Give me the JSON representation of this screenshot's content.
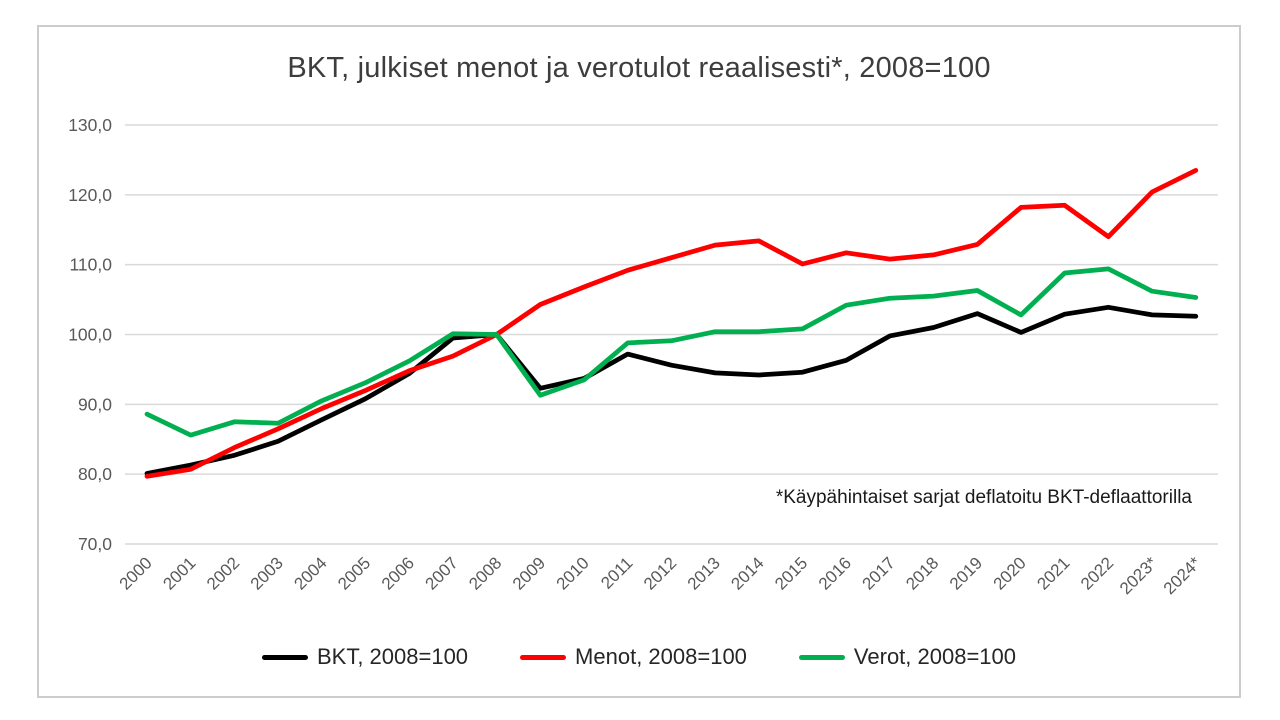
{
  "title": "BKT, julkiset menot ja verotulot reaalisesti*, 2008=100",
  "annotation": "*Käypähintaiset sarjat deflatoitu BKT-deflaattorilla",
  "colors": {
    "background": "#ffffff",
    "frame_border": "#cccccc",
    "gridline": "#d9d9d9",
    "axis_text": "#595959",
    "title_text": "#3d3d3d",
    "legend_text": "#262626",
    "series_bkt": "#000000",
    "series_menot": "#ff0000",
    "series_verot": "#00b050"
  },
  "chart_data": {
    "type": "line",
    "title": "BKT, julkiset menot ja verotulot reaalisesti*, 2008=100",
    "categories": [
      "2000",
      "2001",
      "2002",
      "2003",
      "2004",
      "2005",
      "2006",
      "2007",
      "2008",
      "2009",
      "2010",
      "2011",
      "2012",
      "2013",
      "2014",
      "2015",
      "2016",
      "2017",
      "2018",
      "2019",
      "2020",
      "2021",
      "2022",
      "2023*",
      "2024*"
    ],
    "series": [
      {
        "name": "BKT, 2008=100",
        "color": "#000000",
        "values": [
          80.1,
          81.3,
          82.7,
          84.7,
          87.8,
          90.8,
          94.4,
          99.5,
          100.0,
          92.3,
          93.7,
          97.2,
          95.6,
          94.5,
          94.2,
          94.6,
          96.3,
          99.8,
          101.0,
          103.0,
          100.3,
          102.9,
          103.9,
          102.8,
          102.6
        ]
      },
      {
        "name": "Menot, 2008=100",
        "color": "#ff0000",
        "values": [
          79.7,
          80.7,
          83.8,
          86.5,
          89.4,
          92.0,
          94.8,
          96.9,
          100.0,
          104.3,
          106.8,
          109.2,
          111.0,
          112.8,
          113.4,
          110.1,
          111.7,
          110.8,
          111.4,
          112.9,
          118.2,
          118.5,
          114.0,
          120.4,
          123.5
        ]
      },
      {
        "name": "Verot, 2008=100",
        "color": "#00b050",
        "values": [
          88.6,
          85.6,
          87.5,
          87.3,
          90.5,
          93.1,
          96.2,
          100.1,
          100.0,
          91.3,
          93.5,
          98.8,
          99.1,
          100.4,
          100.4,
          100.8,
          104.2,
          105.2,
          105.5,
          106.3,
          102.8,
          108.8,
          109.4,
          106.2,
          105.3
        ]
      }
    ],
    "ylim": [
      70,
      130
    ],
    "ytick_step": 10,
    "ytick_labels": [
      "70,0",
      "80,0",
      "90,0",
      "100,0",
      "110,0",
      "120,0",
      "130,0"
    ],
    "grid": true,
    "legend_position": "bottom",
    "annotation": "*Käypähintaiset sarjat deflatoitu BKT-deflaattorilla"
  }
}
